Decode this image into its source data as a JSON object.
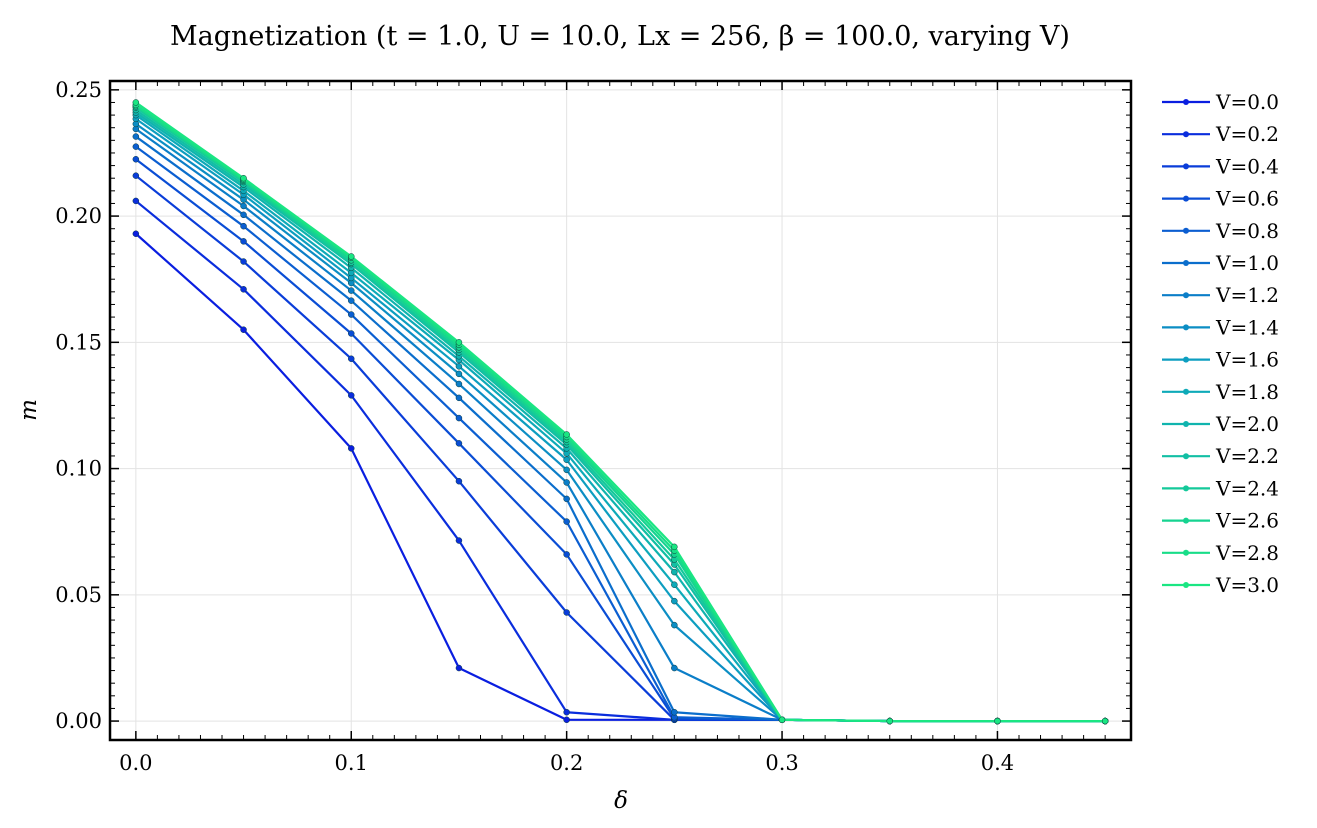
{
  "chart_data": {
    "type": "line",
    "title": "Magnetization (t = 1.0, U = 10.0, Lx = 256, β = 100.0, varying V)",
    "xlabel": "δ",
    "ylabel": "m",
    "xlim": [
      -0.012,
      0.462
    ],
    "ylim": [
      -0.0075,
      0.2535
    ],
    "x_ticks": [
      "0.0",
      "0.1",
      "0.2",
      "0.3",
      "0.4"
    ],
    "x_tick_values": [
      0.0,
      0.1,
      0.2,
      0.3,
      0.4
    ],
    "y_ticks": [
      "0.00",
      "0.05",
      "0.10",
      "0.15",
      "0.20",
      "0.25"
    ],
    "y_tick_values": [
      0.0,
      0.05,
      0.1,
      0.15,
      0.2,
      0.25
    ],
    "grid": true,
    "legend": "outside-right",
    "x": [
      0.0,
      0.05,
      0.1,
      0.15,
      0.2,
      0.25,
      0.3,
      0.35,
      0.4,
      0.45
    ],
    "series": [
      {
        "name": "V=0.0",
        "color": "#0a1ee0",
        "values": [
          0.193,
          0.155,
          0.108,
          0.021,
          0.0005,
          0.0005,
          0.0005,
          0.0,
          0.0,
          0.0
        ]
      },
      {
        "name": "V=0.2",
        "color": "#0a2ddd",
        "values": [
          0.206,
          0.171,
          0.129,
          0.0715,
          0.0035,
          0.0005,
          0.0005,
          0.0,
          0.0,
          0.0
        ]
      },
      {
        "name": "V=0.4",
        "color": "#0a3dd9",
        "values": [
          0.216,
          0.182,
          0.1435,
          0.095,
          0.043,
          0.0005,
          0.0005,
          0.0,
          0.0,
          0.0
        ]
      },
      {
        "name": "V=0.6",
        "color": "#0a4dd5",
        "values": [
          0.2225,
          0.19,
          0.1535,
          0.11,
          0.066,
          0.001,
          0.0005,
          0.0,
          0.0,
          0.0
        ]
      },
      {
        "name": "V=0.8",
        "color": "#0b5ed1",
        "values": [
          0.2275,
          0.196,
          0.161,
          0.12,
          0.079,
          0.0015,
          0.0005,
          0.0,
          0.0,
          0.0
        ]
      },
      {
        "name": "V=1.0",
        "color": "#0b6ecc",
        "values": [
          0.2315,
          0.2005,
          0.1665,
          0.128,
          0.088,
          0.0035,
          0.0005,
          0.0,
          0.0,
          0.0
        ]
      },
      {
        "name": "V=1.2",
        "color": "#0b7ec8",
        "values": [
          0.2345,
          0.204,
          0.1705,
          0.1335,
          0.0945,
          0.021,
          0.0005,
          0.0,
          0.0,
          0.0
        ]
      },
      {
        "name": "V=1.4",
        "color": "#0c8ec4",
        "values": [
          0.2365,
          0.2065,
          0.1735,
          0.1375,
          0.0995,
          0.038,
          0.0005,
          0.0,
          0.0,
          0.0
        ]
      },
      {
        "name": "V=1.6",
        "color": "#0d9ec0",
        "values": [
          0.2385,
          0.2085,
          0.1755,
          0.1405,
          0.1035,
          0.0475,
          0.0005,
          0.0,
          0.0,
          0.0
        ]
      },
      {
        "name": "V=1.8",
        "color": "#0eaab8",
        "values": [
          0.24,
          0.21,
          0.1775,
          0.143,
          0.106,
          0.054,
          0.0005,
          0.0,
          0.0,
          0.0
        ]
      },
      {
        "name": "V=2.0",
        "color": "#10b4ae",
        "values": [
          0.241,
          0.2115,
          0.1795,
          0.1445,
          0.108,
          0.059,
          0.0005,
          0.0,
          0.0,
          0.0
        ]
      },
      {
        "name": "V=2.2",
        "color": "#12bfa4",
        "values": [
          0.242,
          0.2125,
          0.181,
          0.146,
          0.1095,
          0.062,
          0.0005,
          0.0,
          0.0,
          0.0
        ]
      },
      {
        "name": "V=2.4",
        "color": "#14c99a",
        "values": [
          0.243,
          0.2135,
          0.1815,
          0.147,
          0.1105,
          0.064,
          0.0005,
          0.0,
          0.0,
          0.0
        ]
      },
      {
        "name": "V=2.6",
        "color": "#16d390",
        "values": [
          0.2435,
          0.214,
          0.1825,
          0.148,
          0.1115,
          0.066,
          0.0005,
          0.0,
          0.0,
          0.0
        ]
      },
      {
        "name": "V=2.8",
        "color": "#18dd88",
        "values": [
          0.244,
          0.2145,
          0.1835,
          0.149,
          0.1125,
          0.0675,
          0.0005,
          0.0,
          0.0,
          0.0
        ]
      },
      {
        "name": "V=3.0",
        "color": "#1ae682",
        "values": [
          0.245,
          0.215,
          0.184,
          0.15,
          0.1135,
          0.069,
          0.0005,
          0.0,
          0.0,
          0.0
        ]
      }
    ]
  }
}
